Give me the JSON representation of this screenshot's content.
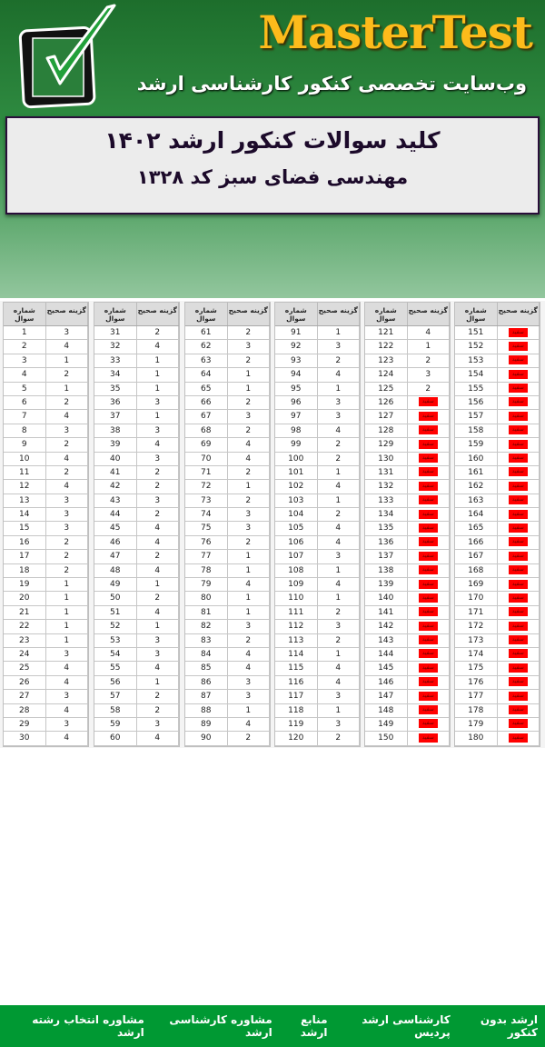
{
  "header": {
    "brand": "MasterTest",
    "tagline": "وب‌سایت تخصصی کنکور کارشناسی ارشد",
    "title": "کلید سوالات کنکور ارشد ۱۴۰۲",
    "subtitle": "مهندسی فضای سبز کد ۱۳۲۸"
  },
  "table": {
    "col_number": "شماره سوال",
    "col_answer": "گزینه صحیح",
    "blank_label": "سفید",
    "blank_color": "#ff0000",
    "answers": [
      "3",
      "4",
      "1",
      "2",
      "1",
      "2",
      "4",
      "3",
      "2",
      "4",
      "2",
      "4",
      "3",
      "3",
      "3",
      "2",
      "2",
      "2",
      "1",
      "1",
      "1",
      "1",
      "1",
      "3",
      "4",
      "4",
      "3",
      "4",
      "3",
      "4",
      "2",
      "4",
      "1",
      "1",
      "1",
      "3",
      "1",
      "3",
      "4",
      "3",
      "2",
      "2",
      "3",
      "2",
      "4",
      "4",
      "2",
      "4",
      "1",
      "2",
      "4",
      "1",
      "3",
      "3",
      "4",
      "1",
      "2",
      "2",
      "3",
      "4",
      "2",
      "3",
      "2",
      "1",
      "1",
      "2",
      "3",
      "2",
      "4",
      "4",
      "2",
      "1",
      "2",
      "3",
      "3",
      "2",
      "1",
      "1",
      "4",
      "1",
      "1",
      "3",
      "2",
      "4",
      "4",
      "3",
      "3",
      "1",
      "4",
      "2",
      "1",
      "3",
      "2",
      "4",
      "1",
      "3",
      "3",
      "4",
      "2",
      "2",
      "1",
      "4",
      "1",
      "2",
      "4",
      "4",
      "3",
      "1",
      "4",
      "1",
      "2",
      "3",
      "2",
      "1",
      "4",
      "4",
      "3",
      "1",
      "3",
      "2",
      "4",
      "1",
      "2",
      "3",
      "2",
      "سفید",
      "سفید",
      "سفید",
      "سفید",
      "سفید",
      "سفید",
      "سفید",
      "سفید",
      "سفید",
      "سفید",
      "سفید",
      "سفید",
      "سفید",
      "سفید",
      "سفید",
      "سفید",
      "سفید",
      "سفید",
      "سفید",
      "سفید",
      "سفید",
      "سفید",
      "سفید",
      "سفید",
      "سفید",
      "سفید",
      "سفید",
      "سفید",
      "سفید",
      "سفید",
      "سفید",
      "سفید",
      "سفید",
      "سفید",
      "سفید",
      "سفید",
      "سفید",
      "سفید",
      "سفید",
      "سفید",
      "سفید",
      "سفید",
      "سفید",
      "سفید",
      "سفید",
      "سفید",
      "سفید",
      "سفید",
      "سفید",
      "سفید",
      "سفید",
      "سفید",
      "سفید",
      "سفید",
      "سفید"
    ]
  },
  "footer": {
    "links": [
      "ارشد بدون کنکور",
      "کارشناسی ارشد پردیس",
      "منابع ارشد",
      "مشاوره کارشناسی ارشد",
      "مشاوره انتخاب رشته ارشد"
    ]
  }
}
